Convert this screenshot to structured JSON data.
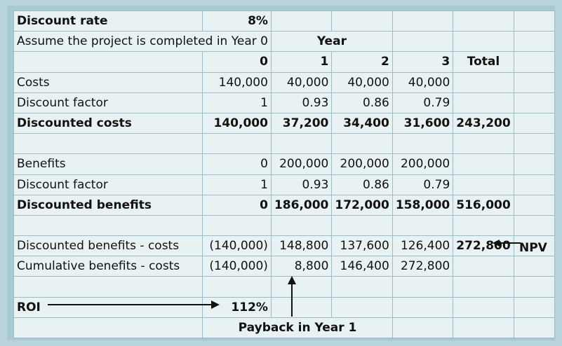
{
  "rows": [
    [
      "Discount rate",
      "8%",
      "",
      "",
      "",
      "",
      ""
    ],
    [
      "Assume the project is completed in Year 0",
      "",
      "Year",
      "",
      ""
    ],
    [
      "",
      "0",
      "1",
      "2",
      "3",
      "Total",
      ""
    ],
    [
      "Costs",
      "140,000",
      "40,000",
      "40,000",
      "40,000",
      "",
      ""
    ],
    [
      "Discount factor",
      "1",
      "0.93",
      "0.86",
      "0.79",
      "",
      ""
    ],
    [
      "Discounted costs",
      "140,000",
      "37,200",
      "34,400",
      "31,600",
      "243,200",
      ""
    ],
    [
      "",
      "",
      "",
      "",
      "",
      "",
      ""
    ],
    [
      "Benefits",
      "0",
      "200,000",
      "200,000",
      "200,000",
      "",
      ""
    ],
    [
      "Discount factor",
      "1",
      "0.93",
      "0.86",
      "0.79",
      "",
      ""
    ],
    [
      "Discounted benefits",
      "0",
      "186,000",
      "172,000",
      "158,000",
      "516,000",
      ""
    ],
    [
      "",
      "",
      "",
      "",
      "",
      "",
      ""
    ],
    [
      "Discounted benefits - costs",
      "(140,000)",
      "148,800",
      "137,600",
      "126,400",
      "272,800",
      ""
    ],
    [
      "Cumulative benefits - costs",
      "(140,000)",
      "8,800",
      "146,400",
      "272,800",
      "",
      ""
    ],
    [
      "",
      "",
      "",
      "",
      "",
      "",
      ""
    ],
    [
      "ROI",
      "112%",
      "",
      "",
      "",
      "",
      ""
    ],
    [
      "",
      "Payback in Year 1",
      "",
      ""
    ]
  ],
  "annotations": {
    "npv_label": "NPV"
  }
}
